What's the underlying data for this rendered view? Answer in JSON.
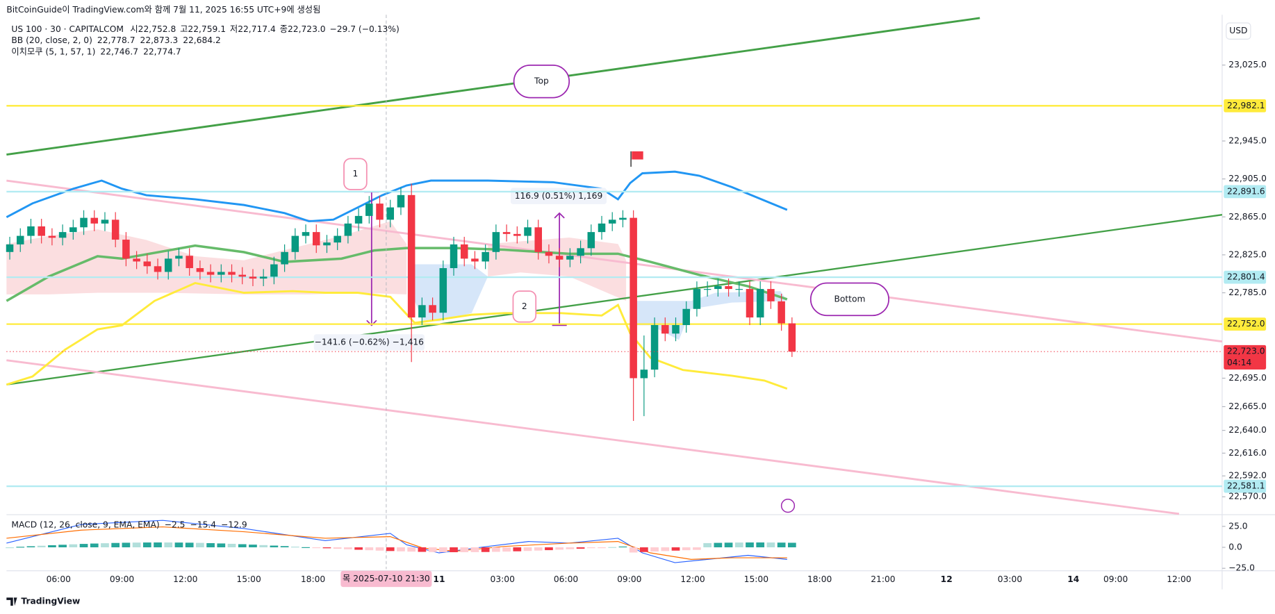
{
  "caption": "BitCoinGuide이 TradingView.com와 함께 7월 11, 2025 16:55 UTC+9에 생성됨",
  "footer": "TradingView",
  "currency": "USD",
  "chart_data": [
    {
      "type": "candlestick",
      "legend": {
        "symbol": "US 100 · 30 · CAPITALCOM",
        "ohlc": [
          {
            "key": "시",
            "value": "22,752.8"
          },
          {
            "key": "고",
            "value": "22,759.1"
          },
          {
            "key": "저",
            "value": "22,717.4"
          },
          {
            "key": "종",
            "value": "22,723.0"
          }
        ],
        "change": "−29.7 (−0.13%)",
        "indicators": [
          {
            "name": "BB (20, close, 2, 0)",
            "values": [
              {
                "text": "22,778.7",
                "color": "#4caf50"
              },
              {
                "text": "22,873.3",
                "color": "#2196f3"
              },
              {
                "text": "22,684.2",
                "color": "#ffeb3b"
              }
            ]
          },
          {
            "name": "이치모쿠 (5, 1, 57, 1)",
            "values": [
              {
                "text": "22,746.7",
                "color": "#f7525f"
              },
              {
                "text": "22,774.7",
                "color": "#2962ff"
              }
            ]
          }
        ]
      },
      "up_color": "#089981",
      "down_color": "#f23645",
      "open": [
        22828,
        22836,
        22845,
        22855,
        22845,
        22843,
        22849,
        22854,
        22864,
        22858,
        22862,
        22841,
        22821,
        22818,
        22813,
        22807,
        22821,
        22824,
        22811,
        22807,
        22804,
        22807,
        22804,
        22802,
        22800,
        22802,
        22815,
        22828,
        22845,
        22849,
        22835,
        22838,
        22845,
        22858,
        22866,
        22879,
        22862,
        22875,
        22888,
        22759,
        22772,
        22764,
        22811,
        22836,
        22821,
        22818,
        22828,
        22849,
        22847,
        22845,
        22854,
        22828,
        22824,
        22820,
        22824,
        22832,
        22849,
        22858,
        22862,
        22864,
        22695,
        22704,
        22751,
        22742,
        22751,
        22768,
        22789,
        22789,
        22792,
        22789,
        22789,
        22759,
        22789,
        22776,
        22752.8
      ],
      "high": [
        22844,
        22853,
        22863,
        22863,
        22853,
        22857,
        22862,
        22872,
        22872,
        22870,
        22870,
        22849,
        22829,
        22826,
        22821,
        22829,
        22832,
        22832,
        22819,
        22815,
        22815,
        22815,
        22812,
        22810,
        22810,
        22823,
        22836,
        22853,
        22857,
        22857,
        22846,
        22853,
        22866,
        22874,
        22887,
        22887,
        22883,
        22896,
        22900,
        22780,
        22780,
        22819,
        22844,
        22844,
        22829,
        22836,
        22857,
        22857,
        22855,
        22862,
        22862,
        22836,
        22832,
        22832,
        22840,
        22857,
        22866,
        22870,
        22872,
        22872,
        22740,
        22759,
        22759,
        22759,
        22776,
        22797,
        22797,
        22800,
        22800,
        22797,
        22797,
        22797,
        22797,
        22784,
        22759.1
      ],
      "low": [
        22820,
        22828,
        22837,
        22837,
        22835,
        22835,
        22841,
        22846,
        22850,
        22850,
        22833,
        22813,
        22810,
        22805,
        22799,
        22799,
        22813,
        22803,
        22799,
        22796,
        22796,
        22796,
        22794,
        22792,
        22792,
        22794,
        22807,
        22820,
        22837,
        22827,
        22827,
        22830,
        22837,
        22850,
        22858,
        22854,
        22854,
        22867,
        22712,
        22751,
        22756,
        22756,
        22803,
        22813,
        22810,
        22810,
        22820,
        22839,
        22837,
        22837,
        22820,
        22816,
        22812,
        22812,
        22816,
        22824,
        22841,
        22850,
        22854,
        22650,
        22655,
        22696,
        22734,
        22734,
        22743,
        22760,
        22781,
        22781,
        22781,
        22781,
        22751,
        22751,
        22768,
        22745,
        22717.4
      ],
      "close": [
        22836,
        22845,
        22855,
        22845,
        22843,
        22849,
        22854,
        22864,
        22858,
        22862,
        22841,
        22821,
        22818,
        22813,
        22807,
        22821,
        22824,
        22811,
        22807,
        22804,
        22807,
        22804,
        22802,
        22800,
        22802,
        22815,
        22828,
        22845,
        22849,
        22835,
        22838,
        22845,
        22858,
        22866,
        22879,
        22862,
        22875,
        22888,
        22759,
        22772,
        22764,
        22811,
        22836,
        22821,
        22818,
        22828,
        22849,
        22847,
        22845,
        22854,
        22828,
        22824,
        22820,
        22824,
        22832,
        22849,
        22858,
        22862,
        22864,
        22695,
        22704,
        22751,
        22742,
        22751,
        22768,
        22789,
        22789,
        22792,
        22789,
        22789,
        22759,
        22789,
        22776,
        22752.8,
        22723
      ],
      "ylim": [
        22552,
        23078
      ],
      "yticks": [
        {
          "value": 23025,
          "label": "23,025.0"
        },
        {
          "value": 22945,
          "label": "22,945.0"
        },
        {
          "value": 22905,
          "label": "22,905.0"
        },
        {
          "value": 22865,
          "label": "22,865.0"
        },
        {
          "value": 22825,
          "label": "22,825.0"
        },
        {
          "value": 22785,
          "label": "22,785.0"
        },
        {
          "value": 22695,
          "label": "22,695.0"
        },
        {
          "value": 22665,
          "label": "22,665.0"
        },
        {
          "value": 22640,
          "label": "22,640.0"
        },
        {
          "value": 22616,
          "label": "22,616.0"
        },
        {
          "value": 22592,
          "label": "22,592.0"
        },
        {
          "value": 22570,
          "label": "22,570.0"
        }
      ],
      "hlines": [
        {
          "value": 22982.1,
          "label": "22,982.1",
          "color": "#ffeb3b"
        },
        {
          "value": 22891.6,
          "label": "22,891.6",
          "color": "#b2ebf2"
        },
        {
          "value": 22801.4,
          "label": "22,801.4",
          "color": "#b2ebf2"
        },
        {
          "value": 22752.0,
          "label": "22,752.0",
          "color": "#ffeb3b"
        },
        {
          "value": 22581.1,
          "label": "22,581.1",
          "color": "#b2ebf2"
        }
      ],
      "last_price": {
        "value": 22723.0,
        "label": "22,723.0",
        "countdown": "04:14"
      },
      "xticks": [
        "06:00",
        "09:00",
        "12:00",
        "15:00",
        "18:00",
        "11",
        "03:00",
        "06:00",
        "09:00",
        "12:00",
        "15:00",
        "18:00",
        "21:00",
        "12",
        "03:00",
        "14",
        "09:00",
        "12:00"
      ],
      "crosshair_label": "목 2025-07-10  21:30",
      "annotations": {
        "top": "Top",
        "bottom": "Bottom",
        "one": "1",
        "two": "2",
        "measure_up": "116.9 (0.51%) 1,169",
        "measure_down": "−141.6 (−0.62%) −1,416"
      },
      "grid": false
    },
    {
      "type": "indicator",
      "title": "MACD (12, 26, close, 9, EMA, EMA)",
      "legend_values": [
        {
          "text": "−2.5",
          "color": "#f23645"
        },
        {
          "text": "−15.4",
          "color": "#2962ff"
        },
        {
          "text": "−12.9",
          "color": "#ff6d00"
        }
      ],
      "ylim": [
        -26,
        36
      ],
      "yticks": [
        {
          "value": 25,
          "label": "25.0"
        },
        {
          "value": 0,
          "label": "0.0"
        },
        {
          "value": -25,
          "label": "−25.0"
        }
      ]
    }
  ]
}
